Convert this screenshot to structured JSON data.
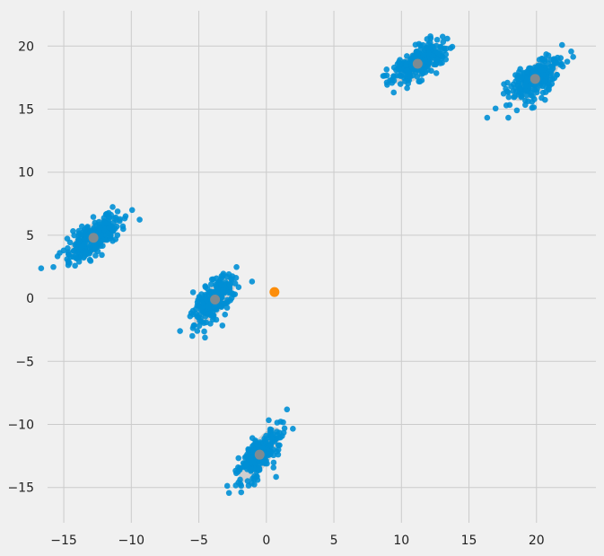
{
  "chart_data": {
    "type": "scatter",
    "title": "",
    "xlabel": "",
    "ylabel": "",
    "xlim": [
      -16.2,
      24.4
    ],
    "ylim": [
      -17.8,
      22.8
    ],
    "grid": true,
    "xticks": [
      -15,
      -10,
      -5,
      0,
      5,
      10,
      15,
      20
    ],
    "yticks": [
      -15,
      -10,
      -5,
      0,
      5,
      10,
      15,
      20
    ],
    "clusters": [
      {
        "center": [
          -12.8,
          4.8
        ],
        "rx": 2.2,
        "ry": 1.0,
        "angle_deg": 40,
        "n": 260,
        "spread": [
          1.3,
          0.55
        ]
      },
      {
        "center": [
          -3.8,
          -0.1
        ],
        "rx": 2.3,
        "ry": 0.9,
        "angle_deg": 52,
        "n": 230,
        "spread": [
          1.25,
          0.5
        ]
      },
      {
        "center": [
          -0.5,
          -12.4
        ],
        "rx": 2.4,
        "ry": 0.9,
        "angle_deg": 55,
        "n": 230,
        "spread": [
          1.3,
          0.5
        ]
      },
      {
        "center": [
          11.2,
          18.6
        ],
        "rx": 2.2,
        "ry": 1.0,
        "angle_deg": 38,
        "n": 230,
        "spread": [
          1.25,
          0.55
        ]
      },
      {
        "center": [
          19.9,
          17.4
        ],
        "rx": 2.2,
        "ry": 1.0,
        "angle_deg": 42,
        "n": 230,
        "spread": [
          1.25,
          0.55
        ]
      }
    ],
    "outlier_point": {
      "x": 0.6,
      "y": 0.5
    },
    "colors": {
      "background": "#f0f0f0",
      "grid": "#cbcbcb",
      "points": "#008fd5",
      "ellipse": "#7a7a7a",
      "center": "#8b8b8b",
      "highlight": "#fc8d0a"
    }
  }
}
